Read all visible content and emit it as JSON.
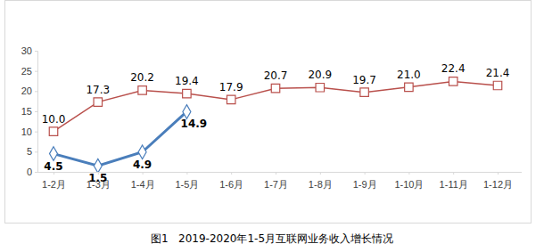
{
  "chart_data": {
    "type": "line",
    "title": "图1   2019-2020年1-5月互联网业务收入增长情况",
    "categories": [
      "1-2月",
      "1-3月",
      "1-4月",
      "1-5月",
      "1-6月",
      "1-7月",
      "1-8月",
      "1-9月",
      "1-10月",
      "1-11月",
      "1-12月"
    ],
    "series": [
      {
        "color": "#b9504c",
        "marker": "square",
        "values": [
          10.0,
          17.3,
          20.2,
          19.4,
          17.9,
          20.7,
          20.9,
          19.7,
          21.0,
          22.4,
          21.4
        ],
        "value_labels": [
          "10.0",
          "17.3",
          "20.2",
          "19.4",
          "17.9",
          "20.7",
          "20.9",
          "19.7",
          "21.0",
          "22.4",
          "21.4"
        ]
      },
      {
        "color": "#4a7ebb",
        "marker": "diamond",
        "values": [
          4.5,
          1.5,
          4.9,
          14.9,
          null,
          null,
          null,
          null,
          null,
          null,
          null
        ],
        "value_labels": [
          "4.5",
          "1.5",
          "4.9",
          "14.9",
          null,
          null,
          null,
          null,
          null,
          null,
          null
        ]
      }
    ],
    "ylim": [
      0,
      30
    ],
    "yticks": [
      0,
      5,
      10,
      15,
      20,
      25,
      30
    ],
    "grid": false,
    "data_labels": true
  }
}
